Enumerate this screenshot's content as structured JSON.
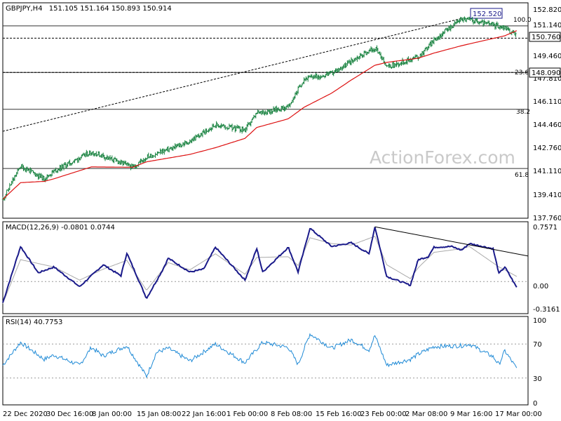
{
  "header": {
    "symbol": "GBPJPY,H4",
    "ohlc": "151.105 151.164 150.893 150.914"
  },
  "watermark": "ActionForex.com",
  "colors": {
    "candle": "#15803d",
    "sma": "#dd1111",
    "macd": "#1a1a8a",
    "signal": "#aaaaaa",
    "rsi": "#1f8ad6",
    "fib": "#333333",
    "trendline": "#000000"
  },
  "chart_data": [
    {
      "type": "candlestick",
      "title": "GBPJPY,H4",
      "overlay": "moving average (red)",
      "ylim": [
        137.0,
        153.3
      ],
      "y_ticks": [
        "152.820",
        "151.140",
        "150.760",
        "149.460",
        "147.810",
        "146.110",
        "144.460",
        "142.760",
        "141.110",
        "139.410",
        "137.760"
      ],
      "x_ticks": [
        "22 Dec 2020",
        "30 Dec 16:00",
        "8 Jan 00:00",
        "15 Jan 08:00",
        "22 Jan 16:00",
        "1 Feb 00:00",
        "8 Feb 08:00",
        "15 Feb 16:00",
        "23 Feb 00:00",
        "2 Mar 08:00",
        "9 Mar 16:00",
        "17 Mar 00:00"
      ],
      "price_anchors": [
        {
          "x": "22 Dec 2020",
          "y": 138.2
        },
        {
          "x": "25 Dec",
          "y": 140.8
        },
        {
          "x": "29 Dec",
          "y": 139.8
        },
        {
          "x": "30 Dec 16:00",
          "y": 140.4
        },
        {
          "x": "6 Jan",
          "y": 141.9
        },
        {
          "x": "13 Jan",
          "y": 140.7
        },
        {
          "x": "15 Jan 08:00",
          "y": 141.5
        },
        {
          "x": "22 Jan 16:00",
          "y": 142.7
        },
        {
          "x": "27 Jan",
          "y": 144.0
        },
        {
          "x": "1 Feb 00:00",
          "y": 143.6
        },
        {
          "x": "3 Feb",
          "y": 144.9
        },
        {
          "x": "8 Feb 08:00",
          "y": 145.4
        },
        {
          "x": "11 Feb",
          "y": 147.6
        },
        {
          "x": "15 Feb 16:00",
          "y": 148.0
        },
        {
          "x": "19 Feb",
          "y": 149.0
        },
        {
          "x": "23 Feb 00:00",
          "y": 150.0
        },
        {
          "x": "25 Feb",
          "y": 148.5
        },
        {
          "x": "2 Mar 08:00",
          "y": 149.3
        },
        {
          "x": "5 Mar",
          "y": 150.6
        },
        {
          "x": "9 Mar 16:00",
          "y": 152.3
        },
        {
          "x": "17 Mar 00:00",
          "y": 151.6
        },
        {
          "x": "19 Mar",
          "y": 150.9
        }
      ],
      "price_labels": [
        {
          "text": "152.520",
          "kind": "swing high"
        },
        {
          "text": "150.760",
          "kind": "current level"
        },
        {
          "text": "148.090",
          "kind": "support level"
        }
      ],
      "fibonacci": [
        {
          "label": "100.0",
          "price": 151.72
        },
        {
          "label": "23.6",
          "price": 148.09
        },
        {
          "label": "38.2",
          "price": 145.22
        },
        {
          "label": "61.8",
          "price": 140.6
        }
      ],
      "horizontal_line": 150.76,
      "trendline": {
        "from": {
          "x": "22 Dec 2020",
          "y": 143.5
        },
        "to": {
          "x": "9 Mar 16:00",
          "y": 152.3
        }
      }
    },
    {
      "type": "line",
      "title": "MACD(12,26,9) -0.0801 0.0744",
      "ylim": [
        -0.42,
        0.8
      ],
      "y_ticks": [
        "0.7571",
        "0.00",
        "-0.3161"
      ],
      "series": [
        {
          "name": "MACD",
          "anchors": [
            {
              "x": "22 Dec 2020",
              "y": -0.29
            },
            {
              "x": "25 Dec",
              "y": 0.48
            },
            {
              "x": "28 Dec",
              "y": 0.12
            },
            {
              "x": "30 Dec 16:00",
              "y": 0.2
            },
            {
              "x": "4 Jan",
              "y": -0.07
            },
            {
              "x": "8 Jan 00:00",
              "y": 0.23
            },
            {
              "x": "11 Jan",
              "y": 0.08
            },
            {
              "x": "12 Jan",
              "y": 0.39
            },
            {
              "x": "15 Jan 08:00",
              "y": -0.23
            },
            {
              "x": "18 Jan",
              "y": 0.15
            },
            {
              "x": "19 Jan",
              "y": 0.32
            },
            {
              "x": "22 Jan 16:00",
              "y": 0.13
            },
            {
              "x": "25 Jan",
              "y": 0.17
            },
            {
              "x": "27 Jan",
              "y": 0.47
            },
            {
              "x": "1 Feb 00:00",
              "y": 0.02
            },
            {
              "x": "3 Feb",
              "y": 0.45
            },
            {
              "x": "4 Feb",
              "y": 0.13
            },
            {
              "x": "8 Feb 08:00",
              "y": 0.47
            },
            {
              "x": "10 Feb",
              "y": 0.13
            },
            {
              "x": "12 Feb",
              "y": 0.73
            },
            {
              "x": "15 Feb 16:00",
              "y": 0.48
            },
            {
              "x": "19 Feb",
              "y": 0.53
            },
            {
              "x": "22 Feb",
              "y": 0.38
            },
            {
              "x": "23 Feb 00:00",
              "y": 0.75
            },
            {
              "x": "25 Feb",
              "y": 0.07
            },
            {
              "x": "1 Mar",
              "y": -0.05
            },
            {
              "x": "2 Mar 08:00",
              "y": 0.3
            },
            {
              "x": "4 Mar",
              "y": 0.34
            },
            {
              "x": "5 Mar",
              "y": 0.47
            },
            {
              "x": "8 Mar",
              "y": 0.48
            },
            {
              "x": "9 Mar 16:00",
              "y": 0.43
            },
            {
              "x": "11 Mar",
              "y": 0.52
            },
            {
              "x": "15 Mar",
              "y": 0.45
            },
            {
              "x": "16 Mar",
              "y": 0.11
            },
            {
              "x": "17 Mar 00:00",
              "y": 0.2
            },
            {
              "x": "19 Mar",
              "y": -0.08
            }
          ]
        },
        {
          "name": "Signal",
          "anchors": [
            {
              "x": "22 Dec 2020",
              "y": -0.3
            },
            {
              "x": "25 Dec",
              "y": 0.3
            },
            {
              "x": "30 Dec 16:00",
              "y": 0.2
            },
            {
              "x": "4 Jan",
              "y": 0.02
            },
            {
              "x": "8 Jan 00:00",
              "y": 0.17
            },
            {
              "x": "12 Jan",
              "y": 0.29
            },
            {
              "x": "15 Jan 08:00",
              "y": -0.12
            },
            {
              "x": "19 Jan",
              "y": 0.26
            },
            {
              "x": "22 Jan 16:00",
              "y": 0.16
            },
            {
              "x": "27 Jan",
              "y": 0.38
            },
            {
              "x": "1 Feb 00:00",
              "y": 0.1
            },
            {
              "x": "3 Feb",
              "y": 0.33
            },
            {
              "x": "8 Feb 08:00",
              "y": 0.34
            },
            {
              "x": "10 Feb",
              "y": 0.22
            },
            {
              "x": "12 Feb",
              "y": 0.6
            },
            {
              "x": "15 Feb 16:00",
              "y": 0.52
            },
            {
              "x": "19 Feb",
              "y": 0.5
            },
            {
              "x": "23 Feb 00:00",
              "y": 0.62
            },
            {
              "x": "25 Feb",
              "y": 0.23
            },
            {
              "x": "1 Mar",
              "y": 0.04
            },
            {
              "x": "2 Mar 08:00",
              "y": 0.19
            },
            {
              "x": "5 Mar",
              "y": 0.4
            },
            {
              "x": "9 Mar 16:00",
              "y": 0.45
            },
            {
              "x": "11 Mar",
              "y": 0.48
            },
            {
              "x": "16 Mar",
              "y": 0.2
            },
            {
              "x": "17 Mar 00:00",
              "y": 0.16
            },
            {
              "x": "19 Mar",
              "y": 0.07
            }
          ]
        }
      ],
      "trendline": {
        "from": {
          "x": "23 Feb 00:00",
          "y": 0.75
        },
        "to": {
          "x": "19 Mar",
          "y": 0.35
        }
      }
    },
    {
      "type": "line",
      "title": "RSI(14) 40.7753",
      "ylim": [
        0,
        100
      ],
      "y_ticks": [
        "100",
        "70",
        "30",
        "0"
      ],
      "levels": [
        70,
        30
      ],
      "series": [
        {
          "name": "RSI(14)",
          "anchors": [
            {
              "x": "22 Dec 2020",
              "y": 45
            },
            {
              "x": "25 Dec",
              "y": 72
            },
            {
              "x": "29 Dec",
              "y": 52
            },
            {
              "x": "30 Dec 16:00",
              "y": 57
            },
            {
              "x": "4 Jan",
              "y": 45
            },
            {
              "x": "6 Jan",
              "y": 66
            },
            {
              "x": "8 Jan 00:00",
              "y": 56
            },
            {
              "x": "12 Jan",
              "y": 68
            },
            {
              "x": "15 Jan 08:00",
              "y": 32
            },
            {
              "x": "17 Jan",
              "y": 60
            },
            {
              "x": "19 Jan",
              "y": 65
            },
            {
              "x": "22 Jan 16:00",
              "y": 50
            },
            {
              "x": "27 Jan",
              "y": 70
            },
            {
              "x": "1 Feb 00:00",
              "y": 48
            },
            {
              "x": "4 Feb",
              "y": 72
            },
            {
              "x": "8 Feb 08:00",
              "y": 66
            },
            {
              "x": "10 Feb",
              "y": 46
            },
            {
              "x": "12 Feb",
              "y": 82
            },
            {
              "x": "15 Feb 16:00",
              "y": 65
            },
            {
              "x": "19 Feb",
              "y": 75
            },
            {
              "x": "22 Feb",
              "y": 63
            },
            {
              "x": "23 Feb 00:00",
              "y": 80
            },
            {
              "x": "25 Feb",
              "y": 45
            },
            {
              "x": "1 Mar",
              "y": 52
            },
            {
              "x": "2 Mar 08:00",
              "y": 58
            },
            {
              "x": "5 Mar",
              "y": 67
            },
            {
              "x": "9 Mar 16:00",
              "y": 68
            },
            {
              "x": "11 Mar",
              "y": 70
            },
            {
              "x": "15 Mar",
              "y": 55
            },
            {
              "x": "16 Mar",
              "y": 46
            },
            {
              "x": "17 Mar 00:00",
              "y": 62
            },
            {
              "x": "19 Mar",
              "y": 41
            }
          ]
        }
      ]
    }
  ]
}
